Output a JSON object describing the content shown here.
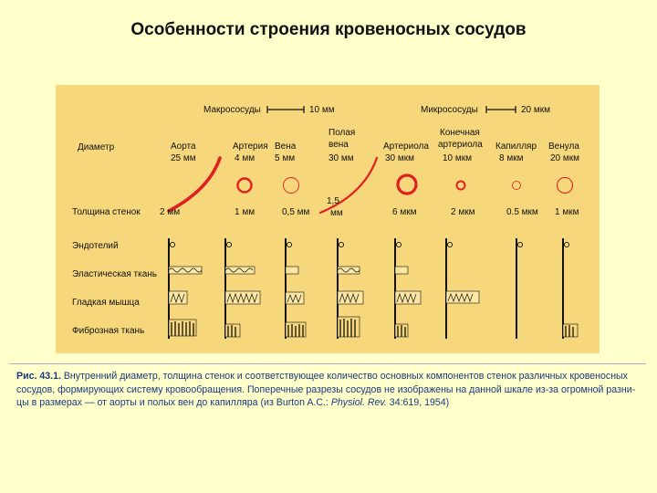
{
  "slide": {
    "title": "Особенности строения кровеносных сосудов"
  },
  "colors": {
    "background": "#ffffcc",
    "panel": "#f6d77c",
    "vessel_red": "#e02020",
    "caption_text": "#1a3a7a"
  },
  "diagram": {
    "scale_macro": {
      "label": "Макрососуды",
      "value": "10 мм"
    },
    "scale_micro": {
      "label": "Микрососуды",
      "value": "20 мкм"
    },
    "row_labels": {
      "diameter": "Диаметр",
      "wall_thickness": "Толщина стенок",
      "endothelium": "Эндотелий",
      "elastic": "Эластическая ткань",
      "smooth_muscle": "Гладкая мышца",
      "fibrous": "Фиброзная ткань"
    },
    "vessels": [
      {
        "id": "aorta",
        "name": "Аорта",
        "diameter": "25 мм",
        "wall": "2 мм"
      },
      {
        "id": "artery",
        "name": "Артерия",
        "diameter": "4 мм",
        "wall": "1 мм"
      },
      {
        "id": "vein",
        "name": "Вена",
        "diameter": "5 мм",
        "wall": "0,5 мм"
      },
      {
        "id": "vena-cava",
        "name_lines": [
          "Полая",
          "вена"
        ],
        "diameter": "30 мм",
        "wall_lines": [
          "1,5",
          "мм"
        ]
      },
      {
        "id": "arteriole",
        "name": "Артериола",
        "diameter": "30 мкм",
        "wall": "6 мкм"
      },
      {
        "id": "terminal-arteriole",
        "name_lines": [
          "Конечная",
          "артериола"
        ],
        "diameter": "10 мкм",
        "wall": "2 мкм"
      },
      {
        "id": "capillary",
        "name": "Капилляр",
        "diameter": "8 мкм",
        "wall": "0.5 мкм"
      },
      {
        "id": "venule",
        "name": "Венула",
        "diameter": "20 мкм",
        "wall": "1 мкм"
      }
    ]
  },
  "caption": {
    "fig_number": "Рис. 43.1.",
    "lines": [
      " Внутренний диаметр, толщина стенок и соответствующее количество основных компонентов стенок различных кровеносных",
      "сосудов, формирующих систему кровообращения. Поперечные разрезы сосудов не изображены на данной шкале из-за огромной разни-",
      "цы в размерах — от аорты и полых вен до капилляра (из Burton A.C.: "
    ],
    "journal": "Physiol. Rev.",
    "citation_tail": " 34:619, 1954)"
  }
}
